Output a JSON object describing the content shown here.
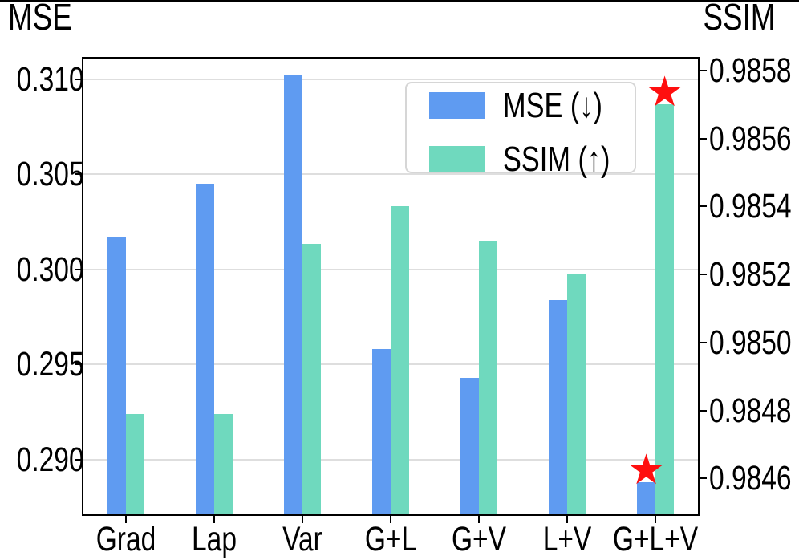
{
  "chart_data": {
    "type": "bar",
    "title": "",
    "categories": [
      "Grad",
      "Lap",
      "Var",
      "G+L",
      "G+V",
      "L+V",
      "G+L+V"
    ],
    "series": [
      {
        "name": "MSE (↓)",
        "key": "mse",
        "axis": "left",
        "color": "#5F9BF1",
        "values": [
          0.3017,
          0.3045,
          0.3102,
          0.2958,
          0.2943,
          0.2984,
          0.2888
        ]
      },
      {
        "name": "SSIM (↑)",
        "key": "ssim",
        "axis": "right",
        "color": "#6FD9BE",
        "values": [
          0.98479,
          0.98479,
          0.98529,
          0.9854,
          0.9853,
          0.9852,
          0.9857
        ]
      }
    ],
    "axes": {
      "left": {
        "title": "MSE",
        "tick_labels": [
          "0.310",
          "0.305",
          "0.300",
          "0.295",
          "0.290"
        ],
        "min": 0.28705,
        "max": 0.31116
      },
      "right": {
        "title": "SSIM",
        "tick_labels": [
          "0.9858",
          "0.9856",
          "0.9854",
          "0.9852",
          "0.9850",
          "0.9848",
          "0.9846"
        ],
        "min": 0.98449,
        "max": 0.98584
      }
    },
    "legend": {
      "position": "upper center-right",
      "entries": [
        {
          "label": "MSE (↓)",
          "color": "#5F9BF1"
        },
        {
          "label": "SSIM (↑)",
          "color": "#6FD9BE"
        }
      ]
    },
    "grid": {
      "horizontal": true
    },
    "highlight": {
      "category": "G+L+V",
      "symbol": "★",
      "color": "#ff0f0f",
      "series": [
        "mse",
        "ssim"
      ]
    }
  }
}
